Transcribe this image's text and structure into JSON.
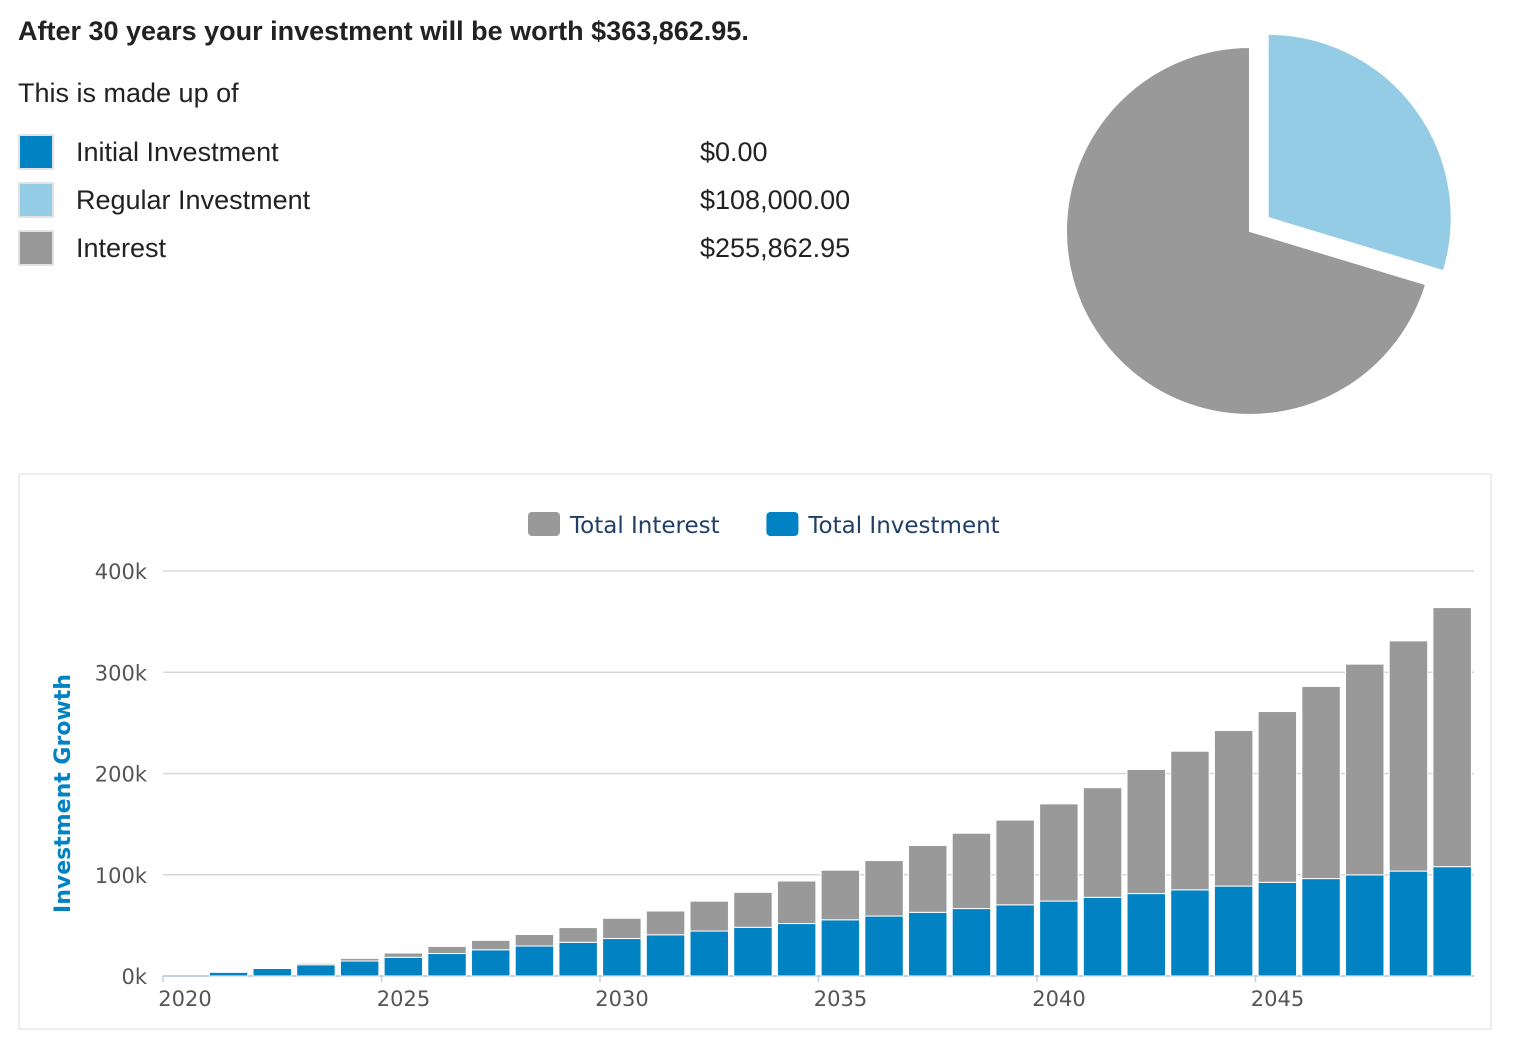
{
  "summary": {
    "headline": "After 30 years your investment will be worth $363,862.95.",
    "made_up_of": "This is made up of",
    "items": [
      {
        "label": "Initial Investment",
        "value": "$0.00",
        "color": "#0082c3"
      },
      {
        "label": "Regular Investment",
        "value": "$108,000.00",
        "color": "#94cbe5"
      },
      {
        "label": "Interest",
        "value": "$255,862.95",
        "color": "#999999"
      }
    ]
  },
  "pie_chart": {
    "type": "pie",
    "slices": [
      {
        "label": "Initial Investment",
        "value": 0,
        "color": "#0082c3"
      },
      {
        "label": "Regular Investment",
        "value": 108000,
        "color": "#94cbe5",
        "exploded": true
      },
      {
        "label": "Interest",
        "value": 255862.95,
        "color": "#999999"
      }
    ]
  },
  "chart_data": {
    "type": "bar",
    "stacked": true,
    "legend_position": "top-center",
    "ylabel": "Investment Growth",
    "xlabel": "",
    "ylim": [
      0,
      400000
    ],
    "y_ticks": [
      0,
      100000,
      200000,
      300000,
      400000
    ],
    "y_tick_labels": [
      "0k",
      "100k",
      "200k",
      "300k",
      "400k"
    ],
    "x_tick_labels": [
      "2020",
      "2025",
      "2030",
      "2035",
      "2040",
      "2045"
    ],
    "grid": true,
    "categories": [
      2020,
      2021,
      2022,
      2023,
      2024,
      2025,
      2026,
      2027,
      2028,
      2029,
      2030,
      2031,
      2032,
      2033,
      2034,
      2035,
      2036,
      2037,
      2038,
      2039,
      2040,
      2041,
      2042,
      2043,
      2044,
      2045,
      2046,
      2047,
      2048,
      2049
    ],
    "series": [
      {
        "name": "Total Investment",
        "color": "#0082c3",
        "values": [
          0,
          3700,
          7400,
          11100,
          14800,
          18500,
          22200,
          25900,
          29600,
          33300,
          37000,
          40700,
          44400,
          48100,
          51800,
          55500,
          59200,
          62900,
          66600,
          70300,
          74000,
          77700,
          81400,
          85100,
          88800,
          92500,
          96200,
          99900,
          103600,
          108000
        ]
      },
      {
        "name": "Total Interest",
        "color": "#999999",
        "values": [
          0,
          100,
          600,
          1400,
          2600,
          4200,
          7000,
          9300,
          11400,
          14500,
          20000,
          23500,
          29500,
          34500,
          42000,
          49000,
          54800,
          66000,
          74400,
          83700,
          96000,
          108300,
          122600,
          136900,
          153700,
          168700,
          189800,
          208100,
          227400,
          255863
        ]
      }
    ]
  }
}
